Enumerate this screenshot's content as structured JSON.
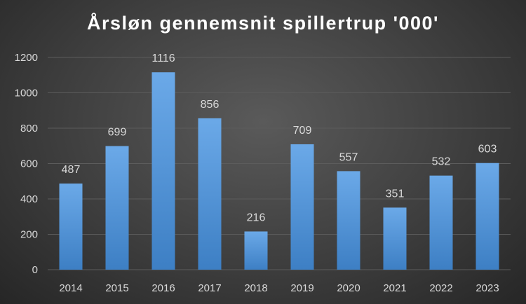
{
  "chart_data": {
    "type": "bar",
    "title": "Årsløn gennemsnit spillertrup '000'",
    "xlabel": "",
    "ylabel": "",
    "categories": [
      "2014",
      "2015",
      "2016",
      "2017",
      "2018",
      "2019",
      "2020",
      "2021",
      "2022",
      "2023"
    ],
    "values": [
      487,
      699,
      1116,
      856,
      216,
      709,
      557,
      351,
      532,
      603
    ],
    "data_labels": [
      "487",
      "699",
      "1116",
      "856",
      "216",
      "709",
      "557",
      "351",
      "532",
      "603"
    ],
    "ylim": [
      0,
      1200
    ],
    "yticks": [
      0,
      200,
      400,
      600,
      800,
      1000,
      1200
    ],
    "ytick_labels": [
      "0",
      "200",
      "400",
      "600",
      "800",
      "1000",
      "1200"
    ],
    "grid": true,
    "legend": "none",
    "colors": {
      "bar_top": "#6ba9e8",
      "bar_bottom": "#3d7fc4",
      "background": "#404040",
      "text": "#d9d9d9",
      "title": "#ffffff",
      "grid": "#5c5c5c"
    }
  }
}
